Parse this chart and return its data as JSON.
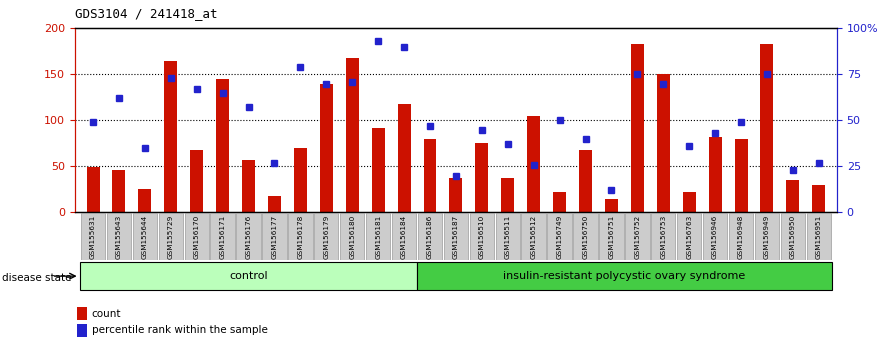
{
  "title": "GDS3104 / 241418_at",
  "samples": [
    "GSM155631",
    "GSM155643",
    "GSM155644",
    "GSM155729",
    "GSM156170",
    "GSM156171",
    "GSM156176",
    "GSM156177",
    "GSM156178",
    "GSM156179",
    "GSM156180",
    "GSM156181",
    "GSM156184",
    "GSM156186",
    "GSM156187",
    "GSM156510",
    "GSM156511",
    "GSM156512",
    "GSM156749",
    "GSM156750",
    "GSM156751",
    "GSM156752",
    "GSM156753",
    "GSM156763",
    "GSM156946",
    "GSM156948",
    "GSM156949",
    "GSM156950",
    "GSM156951"
  ],
  "counts": [
    49,
    46,
    25,
    165,
    68,
    145,
    57,
    18,
    70,
    139,
    168,
    92,
    118,
    80,
    37,
    75,
    37,
    105,
    22,
    68,
    15,
    183,
    150,
    22,
    82,
    80,
    183,
    35,
    30
  ],
  "percentiles_pct": [
    49,
    62,
    35,
    73,
    67,
    65,
    57,
    27,
    79,
    70,
    71,
    93,
    90,
    47,
    20,
    45,
    37,
    26,
    50,
    40,
    12,
    75,
    70,
    36,
    43,
    49,
    75,
    23,
    27
  ],
  "n_control": 13,
  "control_label": "control",
  "disease_label": "insulin-resistant polycystic ovary syndrome",
  "bar_color": "#cc1100",
  "dot_color": "#2222cc",
  "left_axis_color": "#cc1100",
  "right_axis_color": "#2222cc",
  "control_bg": "#bbffbb",
  "disease_bg": "#44cc44",
  "tick_bg": "#cccccc",
  "legend_count_label": "count",
  "legend_pct_label": "percentile rank within the sample",
  "disease_state_label": "disease state"
}
